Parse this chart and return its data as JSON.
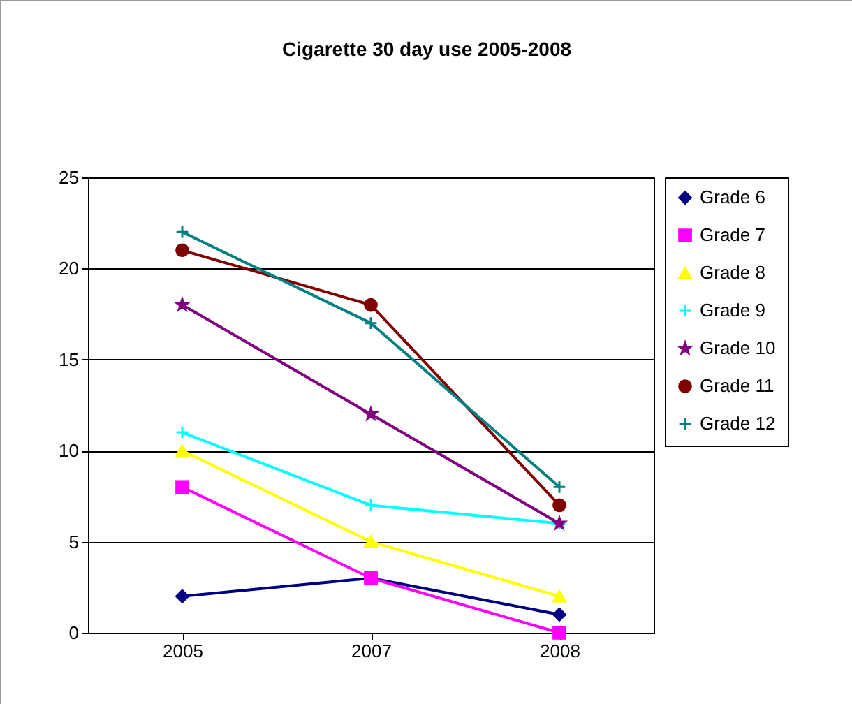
{
  "chart_data": {
    "type": "line",
    "title": "Cigarette 30 day use 2005-2008",
    "categories": [
      "2005",
      "2007",
      "2008"
    ],
    "ylim": [
      0,
      25
    ],
    "yticks": [
      0,
      5,
      10,
      15,
      20,
      25
    ],
    "grid": "y",
    "legend": "right",
    "series": [
      {
        "name": "Grade 6",
        "color": "#000080",
        "marker": "diamond",
        "values": [
          2,
          3,
          1
        ]
      },
      {
        "name": "Grade 7",
        "color": "#ff00ff",
        "marker": "square",
        "values": [
          8,
          3,
          0
        ]
      },
      {
        "name": "Grade 8",
        "color": "#ffff00",
        "marker": "triangle",
        "values": [
          10,
          5,
          2
        ]
      },
      {
        "name": "Grade 9",
        "color": "#00ffff",
        "marker": "cross",
        "values": [
          11,
          7,
          6
        ]
      },
      {
        "name": "Grade 10",
        "color": "#800080",
        "marker": "star",
        "values": [
          18,
          12,
          6
        ]
      },
      {
        "name": "Grade 11",
        "color": "#800000",
        "marker": "circle",
        "values": [
          21,
          18,
          7
        ]
      },
      {
        "name": "Grade 12",
        "color": "#008080",
        "marker": "cross",
        "values": [
          22,
          17,
          8
        ]
      }
    ]
  }
}
